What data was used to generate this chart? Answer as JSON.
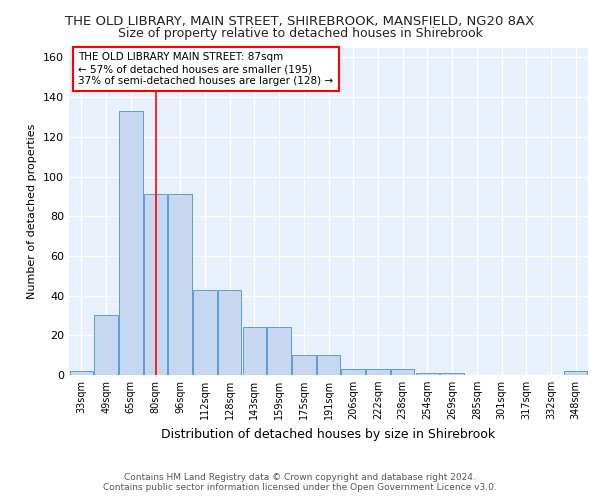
{
  "title": "THE OLD LIBRARY, MAIN STREET, SHIREBROOK, MANSFIELD, NG20 8AX",
  "subtitle": "Size of property relative to detached houses in Shirebrook",
  "xlabel": "Distribution of detached houses by size in Shirebrook",
  "ylabel": "Number of detached properties",
  "categories": [
    "33sqm",
    "49sqm",
    "65sqm",
    "80sqm",
    "96sqm",
    "112sqm",
    "128sqm",
    "143sqm",
    "159sqm",
    "175sqm",
    "191sqm",
    "206sqm",
    "222sqm",
    "238sqm",
    "254sqm",
    "269sqm",
    "285sqm",
    "301sqm",
    "317sqm",
    "332sqm",
    "348sqm"
  ],
  "bar_values_exact": [
    2,
    30,
    133,
    91,
    91,
    43,
    43,
    24,
    24,
    10,
    10,
    3,
    3,
    3,
    1,
    1,
    0,
    0,
    0,
    0,
    2
  ],
  "bar_color": "#c5d8f0",
  "bar_edge_color": "#5b9bd5",
  "red_line_x": 3.0,
  "annotation_lines": [
    "THE OLD LIBRARY MAIN STREET: 87sqm",
    "← 57% of detached houses are smaller (195)",
    "37% of semi-detached houses are larger (128) →"
  ],
  "ylim": [
    0,
    165
  ],
  "yticks": [
    0,
    20,
    40,
    60,
    80,
    100,
    120,
    140,
    160
  ],
  "footer_line1": "Contains HM Land Registry data © Crown copyright and database right 2024.",
  "footer_line2": "Contains public sector information licensed under the Open Government Licence v3.0.",
  "bg_color": "#e8f0fb",
  "grid_color": "#ffffff"
}
